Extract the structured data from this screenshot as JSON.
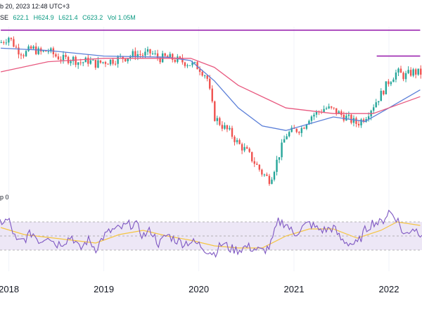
{
  "header": {
    "timestamp": "b 20, 2023 12:48 UTC+3",
    "exchange_fragment": "SE",
    "ohlc": {
      "open": "622.1",
      "high": "H624.9",
      "low": "L621.4",
      "close": "C623.2",
      "volume": "Vol 1.05M"
    }
  },
  "rsi_panel": {
    "label_fragment": "p 0"
  },
  "colors": {
    "bull": "#26a69a",
    "bear": "#ef5350",
    "ma_fast": "#5b7fd8",
    "ma_slow": "#e85a80",
    "resistance": "#9c27b0",
    "rsi_line": "#7e57c2",
    "rsi_ma": "#f5c542",
    "rsi_band": "#ede7f6"
  },
  "chart_data": [
    {
      "type": "candlestick",
      "x_axis_labels": [
        "2018",
        "2019",
        "2020",
        "2021",
        "2022"
      ],
      "price_path": [
        [
          "2017-12-01",
          930
        ],
        [
          "2018-01-01",
          955
        ],
        [
          "2018-02-01",
          900
        ],
        [
          "2018-03-01",
          880
        ],
        [
          "2018-04-01",
          905
        ],
        [
          "2018-05-01",
          885
        ],
        [
          "2018-06-01",
          895
        ],
        [
          "2018-07-01",
          870
        ],
        [
          "2018-08-01",
          855
        ],
        [
          "2018-09-01",
          860
        ],
        [
          "2018-10-01",
          840
        ],
        [
          "2018-11-01",
          850
        ],
        [
          "2018-12-01",
          835
        ],
        [
          "2019-01-01",
          845
        ],
        [
          "2019-02-01",
          850
        ],
        [
          "2019-03-01",
          860
        ],
        [
          "2019-04-01",
          865
        ],
        [
          "2019-05-01",
          880
        ],
        [
          "2019-06-01",
          875
        ],
        [
          "2019-07-01",
          885
        ],
        [
          "2019-08-01",
          860
        ],
        [
          "2019-09-01",
          865
        ],
        [
          "2019-10-01",
          855
        ],
        [
          "2019-11-01",
          845
        ],
        [
          "2019-12-01",
          835
        ],
        [
          "2020-01-01",
          820
        ],
        [
          "2020-02-01",
          780
        ],
        [
          "2020-03-01",
          600
        ],
        [
          "2020-04-01",
          560
        ],
        [
          "2020-05-01",
          530
        ],
        [
          "2020-06-01",
          480
        ],
        [
          "2020-07-01",
          450
        ],
        [
          "2020-08-01",
          400
        ],
        [
          "2020-09-01",
          350
        ],
        [
          "2020-10-01",
          320
        ],
        [
          "2020-11-01",
          420
        ],
        [
          "2020-12-01",
          520
        ],
        [
          "2021-01-01",
          540
        ],
        [
          "2021-02-01",
          550
        ],
        [
          "2021-03-01",
          600
        ],
        [
          "2021-04-01",
          620
        ],
        [
          "2021-05-01",
          640
        ],
        [
          "2021-06-01",
          630
        ],
        [
          "2021-07-01",
          610
        ],
        [
          "2021-08-01",
          590
        ],
        [
          "2021-09-01",
          570
        ],
        [
          "2021-10-01",
          600
        ],
        [
          "2021-11-01",
          650
        ],
        [
          "2021-12-01",
          700
        ],
        [
          "2022-01-01",
          760
        ],
        [
          "2022-02-01",
          800
        ],
        [
          "2022-03-01",
          780
        ],
        [
          "2022-04-01",
          800
        ],
        [
          "2022-05-01",
          795
        ]
      ],
      "moving_averages": [
        {
          "color": "#5b7fd8",
          "values": [
            [
              "2017-12-01",
              905
            ],
            [
              "2018-06-01",
              895
            ],
            [
              "2019-01-01",
              870
            ],
            [
              "2019-09-01",
              865
            ],
            [
              "2019-12-01",
              850
            ],
            [
              "2020-03-01",
              760
            ],
            [
              "2020-06-01",
              640
            ],
            [
              "2020-09-01",
              560
            ],
            [
              "2020-12-01",
              540
            ],
            [
              "2021-06-01",
              600
            ],
            [
              "2021-10-01",
              580
            ],
            [
              "2022-01-01",
              640
            ],
            [
              "2022-05-01",
              720
            ]
          ]
        },
        {
          "color": "#e85a80",
          "values": [
            [
              "2017-12-01",
              800
            ],
            [
              "2018-06-01",
              845
            ],
            [
              "2019-01-01",
              860
            ],
            [
              "2019-12-01",
              860
            ],
            [
              "2020-03-01",
              820
            ],
            [
              "2020-06-01",
              740
            ],
            [
              "2020-12-01",
              640
            ],
            [
              "2021-06-01",
              615
            ],
            [
              "2021-11-01",
              615
            ],
            [
              "2022-05-01",
              690
            ]
          ]
        }
      ],
      "horizontal_lines": [
        {
          "value": 985,
          "from": "2017-12-01",
          "to": "2022-05-01"
        },
        {
          "value": 870,
          "from": "2021-11-15",
          "to": "2022-05-01"
        }
      ]
    },
    {
      "type": "line",
      "x_axis_labels": [
        "2018",
        "2019",
        "2020",
        "2021",
        "2022"
      ],
      "overbought": 70,
      "oversold": 30,
      "rsi_values": [
        [
          "2017-12-01",
          70
        ],
        [
          "2018-01-01",
          72
        ],
        [
          "2018-02-01",
          40
        ],
        [
          "2018-03-01",
          45
        ],
        [
          "2018-04-01",
          55
        ],
        [
          "2018-05-01",
          42
        ],
        [
          "2018-06-01",
          52
        ],
        [
          "2018-07-01",
          38
        ],
        [
          "2018-08-01",
          42
        ],
        [
          "2018-09-01",
          50
        ],
        [
          "2018-10-01",
          30
        ],
        [
          "2018-11-01",
          45
        ],
        [
          "2018-12-01",
          32
        ],
        [
          "2019-01-01",
          50
        ],
        [
          "2019-02-01",
          58
        ],
        [
          "2019-03-01",
          60
        ],
        [
          "2019-04-01",
          65
        ],
        [
          "2019-05-01",
          68
        ],
        [
          "2019-06-01",
          50
        ],
        [
          "2019-07-01",
          58
        ],
        [
          "2019-08-01",
          38
        ],
        [
          "2019-09-01",
          52
        ],
        [
          "2019-10-01",
          45
        ],
        [
          "2019-11-01",
          40
        ],
        [
          "2019-12-01",
          42
        ],
        [
          "2020-01-01",
          38
        ],
        [
          "2020-02-01",
          30
        ],
        [
          "2020-03-01",
          25
        ],
        [
          "2020-04-01",
          40
        ],
        [
          "2020-05-01",
          32
        ],
        [
          "2020-06-01",
          30
        ],
        [
          "2020-07-01",
          35
        ],
        [
          "2020-08-01",
          32
        ],
        [
          "2020-09-01",
          28
        ],
        [
          "2020-10-01",
          35
        ],
        [
          "2020-11-01",
          70
        ],
        [
          "2020-12-01",
          68
        ],
        [
          "2021-01-01",
          52
        ],
        [
          "2021-02-01",
          62
        ],
        [
          "2021-03-01",
          68
        ],
        [
          "2021-04-01",
          60
        ],
        [
          "2021-05-01",
          58
        ],
        [
          "2021-06-01",
          62
        ],
        [
          "2021-07-01",
          45
        ],
        [
          "2021-08-01",
          40
        ],
        [
          "2021-09-01",
          38
        ],
        [
          "2021-10-01",
          58
        ],
        [
          "2021-11-01",
          70
        ],
        [
          "2021-12-01",
          68
        ],
        [
          "2022-01-01",
          85
        ],
        [
          "2022-02-01",
          75
        ],
        [
          "2022-03-01",
          50
        ],
        [
          "2022-04-01",
          62
        ],
        [
          "2022-05-01",
          55
        ]
      ],
      "rsi_ma_values": [
        [
          "2017-12-01",
          62
        ],
        [
          "2018-03-01",
          52
        ],
        [
          "2018-06-01",
          48
        ],
        [
          "2018-09-01",
          44
        ],
        [
          "2018-12-01",
          40
        ],
        [
          "2019-03-01",
          52
        ],
        [
          "2019-06-01",
          58
        ],
        [
          "2019-09-01",
          50
        ],
        [
          "2019-12-01",
          44
        ],
        [
          "2020-03-01",
          36
        ],
        [
          "2020-06-01",
          33
        ],
        [
          "2020-09-01",
          33
        ],
        [
          "2020-12-01",
          50
        ],
        [
          "2021-03-01",
          60
        ],
        [
          "2021-06-01",
          60
        ],
        [
          "2021-09-01",
          47
        ],
        [
          "2021-12-01",
          58
        ],
        [
          "2022-02-01",
          70
        ],
        [
          "2022-05-01",
          65
        ]
      ]
    }
  ]
}
